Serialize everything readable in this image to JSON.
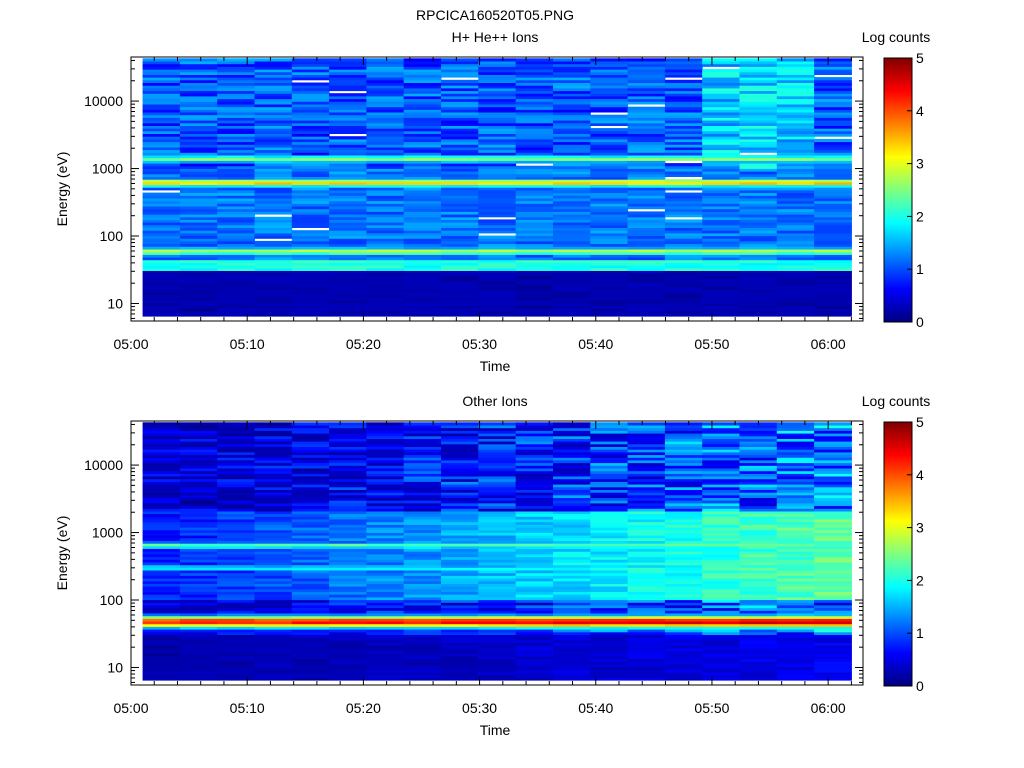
{
  "figure_title": "RPCICA160520T05.PNG",
  "colormap": [
    "#00007f",
    "#0000ff",
    "#007fff",
    "#00ffff",
    "#7fff7f",
    "#ffff00",
    "#ff7f00",
    "#ff0000",
    "#7f0000"
  ],
  "chart_data": [
    {
      "type": "heatmap",
      "title": "H+ He++ Ions",
      "xlabel": "Time",
      "ylabel": "Energy (eV)",
      "x_ticks": [
        "05:00",
        "05:10",
        "05:20",
        "05:30",
        "05:40",
        "05:50",
        "06:00"
      ],
      "x_range_minutes": [
        0,
        63
      ],
      "y_scale": "log",
      "y_ticks": [
        "10",
        "100",
        "1000",
        "10000"
      ],
      "y_range": [
        5.5,
        45000
      ],
      "colorbar_label": "Log counts",
      "colorbar_ticks": [
        "0",
        "1",
        "2",
        "3",
        "4",
        "5"
      ],
      "colorbar_range": [
        0,
        5
      ],
      "time_bins": 19,
      "energy_bins": 96,
      "bands": [
        {
          "energy": 620,
          "log_counts": 3.3,
          "note": "narrow band ~500-800 eV"
        },
        {
          "energy": 1400,
          "log_counts": 2.4
        },
        {
          "energy": 60,
          "log_counts": 2.6,
          "note": "band ~40-80 eV"
        },
        {
          "energy": 6000,
          "log_counts": 1.2,
          "note": "background above 1 keV"
        }
      ]
    },
    {
      "type": "heatmap",
      "title": "Other Ions",
      "xlabel": "Time",
      "ylabel": "Energy (eV)",
      "x_ticks": [
        "05:00",
        "05:10",
        "05:20",
        "05:30",
        "05:40",
        "05:50",
        "06:00"
      ],
      "x_range_minutes": [
        0,
        63
      ],
      "y_scale": "log",
      "y_ticks": [
        "10",
        "100",
        "1000",
        "10000"
      ],
      "y_range": [
        5.5,
        45000
      ],
      "colorbar_label": "Log counts",
      "colorbar_ticks": [
        "0",
        "1",
        "2",
        "3",
        "4",
        "5"
      ],
      "colorbar_range": [
        0,
        5
      ],
      "time_bins": 19,
      "energy_bins": 96,
      "bands": [
        {
          "energy": 48,
          "log_counts": 4.1,
          "note": "strong band ~35-70 eV"
        },
        {
          "energy": 650,
          "log_counts": 2.2,
          "note": "band ~550-750 eV"
        },
        {
          "energy": 300,
          "log_counts": 1.8,
          "note": "diffuse, increasing after 05:30"
        }
      ]
    }
  ]
}
